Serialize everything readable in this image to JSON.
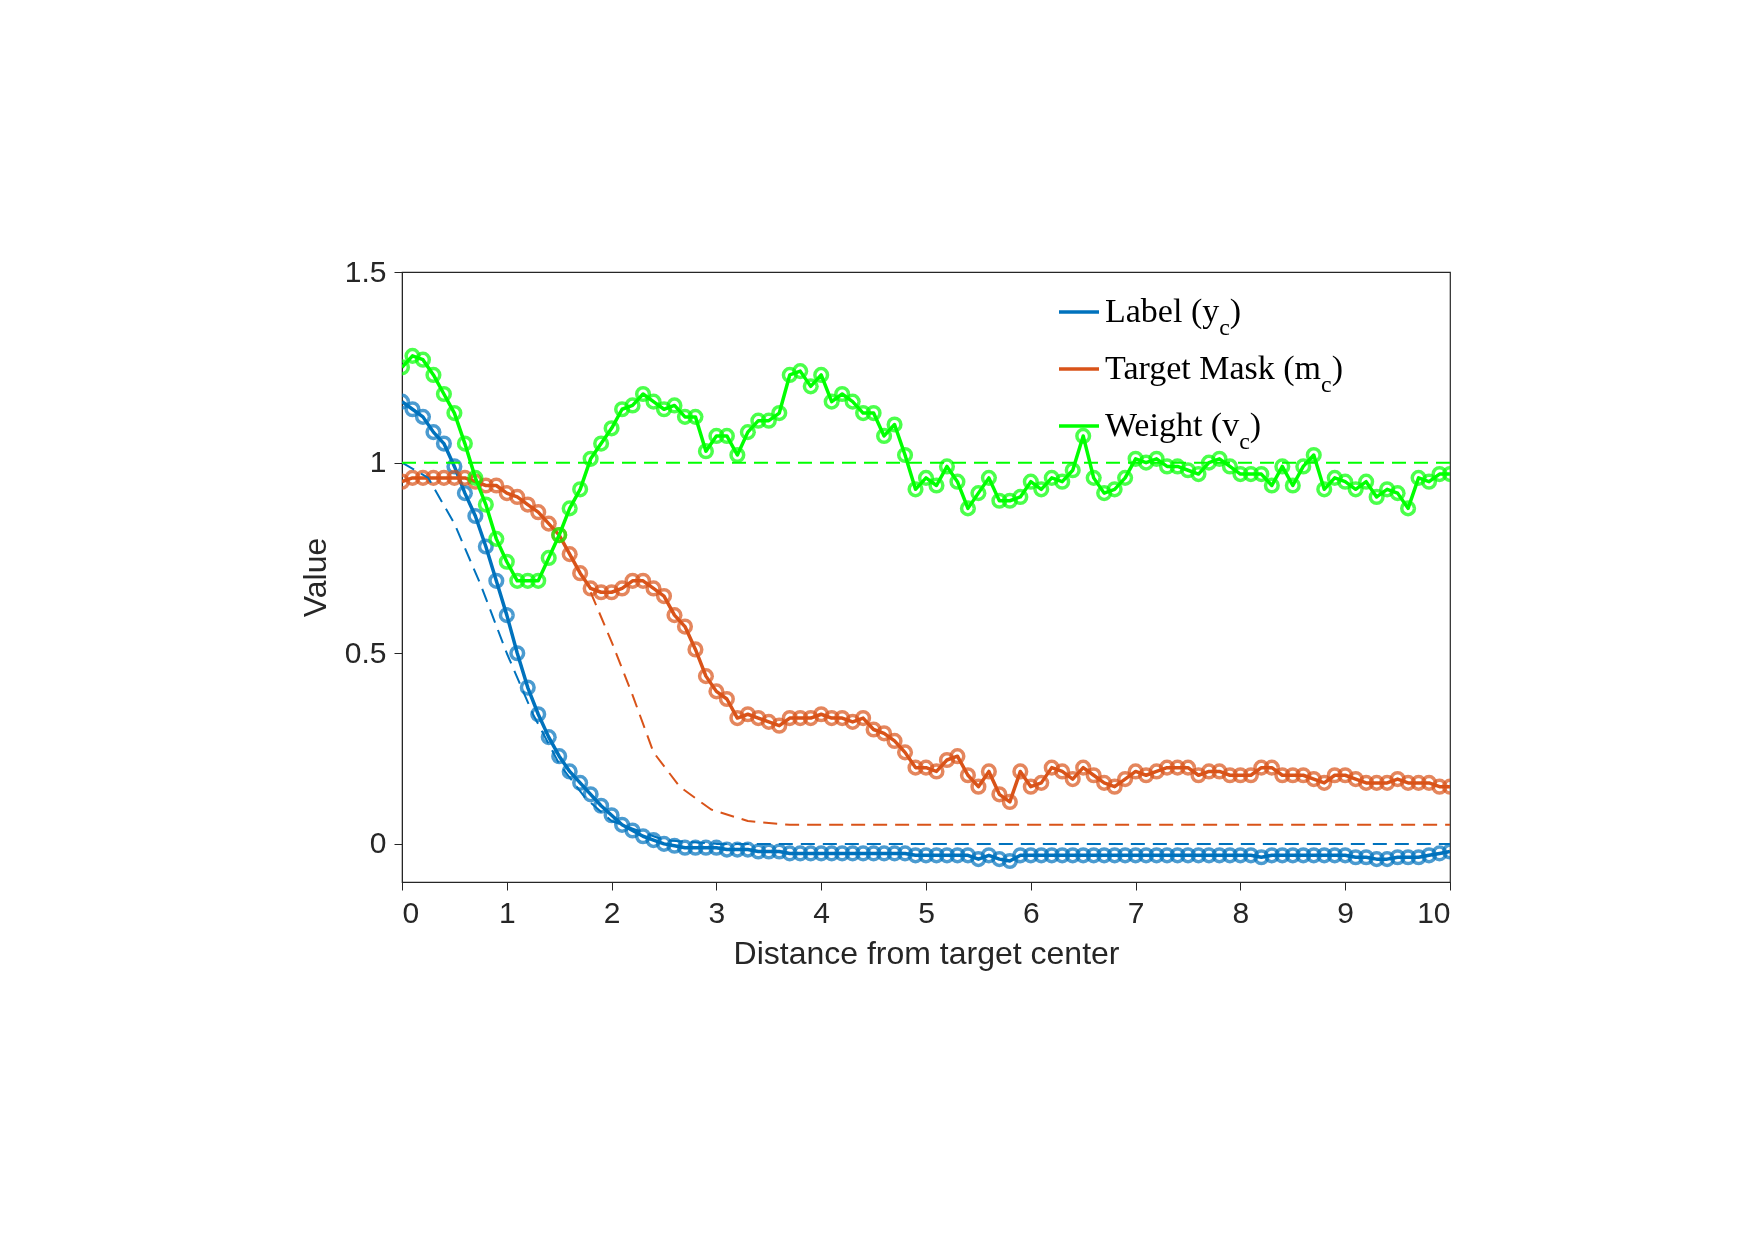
{
  "chart_data": {
    "type": "line",
    "xlabel": "Distance from target center",
    "ylabel": "Value",
    "x": [
      0,
      0.1,
      0.2,
      0.3,
      0.4,
      0.5,
      0.6,
      0.7,
      0.8,
      0.9,
      1,
      1.1,
      1.2,
      1.3,
      1.4,
      1.5,
      1.6,
      1.7,
      1.8,
      1.9,
      2,
      2.1,
      2.2,
      2.3,
      2.4,
      2.5,
      2.6,
      2.7,
      2.8,
      2.9,
      3,
      3.1,
      3.2,
      3.3,
      3.4,
      3.5,
      3.6,
      3.7,
      3.8,
      3.9,
      4,
      4.1,
      4.2,
      4.3,
      4.4,
      4.5,
      4.6,
      4.7,
      4.8,
      4.9,
      5,
      5.1,
      5.2,
      5.3,
      5.4,
      5.5,
      5.6,
      5.7,
      5.8,
      5.9,
      6,
      6.1,
      6.2,
      6.3,
      6.4,
      6.5,
      6.6,
      6.7,
      6.8,
      6.9,
      7,
      7.1,
      7.2,
      7.3,
      7.4,
      7.5,
      7.6,
      7.7,
      7.8,
      7.9,
      8,
      8.1,
      8.2,
      8.3,
      8.4,
      8.5,
      8.6,
      8.7,
      8.8,
      8.9,
      9,
      9.1,
      9.2,
      9.3,
      9.4,
      9.5,
      9.6,
      9.7,
      9.8,
      9.9,
      10
    ],
    "series": [
      {
        "name": "Label (y$_{c}$)",
        "color": "#0072bd",
        "marker": "circle",
        "line_style": "solid",
        "values": [
          1.16,
          1.14,
          1.12,
          1.08,
          1.05,
          0.99,
          0.92,
          0.86,
          0.78,
          0.69,
          0.6,
          0.5,
          0.41,
          0.34,
          0.28,
          0.23,
          0.19,
          0.16,
          0.13,
          0.1,
          0.075,
          0.05,
          0.035,
          0.02,
          0.01,
          0.0,
          -0.005,
          -0.01,
          -0.01,
          -0.01,
          -0.01,
          -0.015,
          -0.015,
          -0.015,
          -0.02,
          -0.02,
          -0.02,
          -0.025,
          -0.025,
          -0.025,
          -0.025,
          -0.025,
          -0.025,
          -0.025,
          -0.025,
          -0.025,
          -0.025,
          -0.025,
          -0.025,
          -0.03,
          -0.03,
          -0.03,
          -0.03,
          -0.03,
          -0.03,
          -0.04,
          -0.03,
          -0.04,
          -0.045,
          -0.03,
          -0.03,
          -0.03,
          -0.03,
          -0.03,
          -0.03,
          -0.03,
          -0.03,
          -0.03,
          -0.03,
          -0.03,
          -0.03,
          -0.03,
          -0.03,
          -0.03,
          -0.03,
          -0.03,
          -0.03,
          -0.03,
          -0.03,
          -0.03,
          -0.03,
          -0.03,
          -0.035,
          -0.03,
          -0.03,
          -0.03,
          -0.03,
          -0.03,
          -0.03,
          -0.03,
          -0.03,
          -0.035,
          -0.035,
          -0.04,
          -0.04,
          -0.035,
          -0.035,
          -0.035,
          -0.03,
          -0.025,
          -0.02
        ]
      },
      {
        "name": "Target Mask (m$_{c}$)",
        "color": "#d95319",
        "marker": "circle",
        "line_style": "solid",
        "values": [
          0.95,
          0.96,
          0.96,
          0.96,
          0.96,
          0.96,
          0.96,
          0.95,
          0.94,
          0.94,
          0.92,
          0.91,
          0.89,
          0.87,
          0.84,
          0.81,
          0.76,
          0.71,
          0.67,
          0.66,
          0.66,
          0.67,
          0.69,
          0.69,
          0.67,
          0.65,
          0.6,
          0.57,
          0.51,
          0.44,
          0.4,
          0.38,
          0.33,
          0.34,
          0.33,
          0.32,
          0.31,
          0.33,
          0.33,
          0.33,
          0.34,
          0.33,
          0.33,
          0.32,
          0.33,
          0.3,
          0.29,
          0.27,
          0.24,
          0.2,
          0.2,
          0.19,
          0.22,
          0.23,
          0.18,
          0.15,
          0.19,
          0.13,
          0.11,
          0.19,
          0.15,
          0.16,
          0.2,
          0.19,
          0.17,
          0.2,
          0.18,
          0.16,
          0.15,
          0.17,
          0.19,
          0.18,
          0.19,
          0.2,
          0.2,
          0.2,
          0.18,
          0.19,
          0.19,
          0.18,
          0.18,
          0.18,
          0.2,
          0.2,
          0.18,
          0.18,
          0.18,
          0.17,
          0.16,
          0.18,
          0.18,
          0.17,
          0.16,
          0.16,
          0.16,
          0.17,
          0.16,
          0.16,
          0.16,
          0.15,
          0.15
        ]
      },
      {
        "name": "Weight (v$_{c}$)",
        "color": "#00ff00",
        "marker": "circle",
        "line_style": "solid",
        "values": [
          1.25,
          1.28,
          1.27,
          1.23,
          1.18,
          1.13,
          1.05,
          0.96,
          0.89,
          0.8,
          0.74,
          0.69,
          0.69,
          0.69,
          0.75,
          0.81,
          0.88,
          0.93,
          1.01,
          1.05,
          1.09,
          1.14,
          1.15,
          1.18,
          1.16,
          1.14,
          1.15,
          1.12,
          1.12,
          1.03,
          1.07,
          1.07,
          1.02,
          1.08,
          1.11,
          1.11,
          1.13,
          1.23,
          1.24,
          1.2,
          1.23,
          1.16,
          1.18,
          1.16,
          1.13,
          1.13,
          1.07,
          1.1,
          1.02,
          0.93,
          0.96,
          0.94,
          0.99,
          0.95,
          0.88,
          0.92,
          0.96,
          0.9,
          0.9,
          0.91,
          0.95,
          0.93,
          0.96,
          0.95,
          0.98,
          1.07,
          0.96,
          0.92,
          0.93,
          0.96,
          1.01,
          1.0,
          1.01,
          0.99,
          0.99,
          0.98,
          0.97,
          1.0,
          1.01,
          0.99,
          0.97,
          0.97,
          0.97,
          0.94,
          0.99,
          0.94,
          0.99,
          1.02,
          0.93,
          0.96,
          0.95,
          0.93,
          0.95,
          0.91,
          0.93,
          0.92,
          0.88,
          0.96,
          0.95,
          0.97,
          0.97
        ]
      },
      {
        "color": "#0072bd",
        "marker": "none",
        "line_style": "dashed",
        "x": [
          0,
          0.25,
          0.5,
          0.75,
          1,
          1.25,
          1.5,
          1.75,
          2,
          2.5,
          3,
          3.5,
          10
        ],
        "values": [
          1,
          0.96,
          0.84,
          0.68,
          0.5,
          0.34,
          0.21,
          0.12,
          0.06,
          0.01,
          0,
          0,
          0
        ]
      },
      {
        "color": "#d95319",
        "marker": "none",
        "line_style": "dashed",
        "x": [
          1.8,
          2,
          2.2,
          2.4,
          2.65,
          2.95,
          3.3,
          3.7,
          4.5,
          10
        ],
        "values": [
          0.66,
          0.53,
          0.39,
          0.24,
          0.15,
          0.09,
          0.06,
          0.05,
          0.05,
          0.05
        ]
      }
    ],
    "ref_lines": [
      {
        "axis": "y",
        "value": 1,
        "color": "#00ff00",
        "line_style": "dashed"
      }
    ],
    "xlim": [
      0,
      10
    ],
    "xticks": [
      0,
      1,
      2,
      3,
      4,
      5,
      6,
      7,
      8,
      9,
      10
    ],
    "ylim": [
      -0.1,
      1.5
    ],
    "yticks": [
      0,
      0.5,
      1,
      1.5
    ],
    "grid": false,
    "legend": "top right"
  }
}
